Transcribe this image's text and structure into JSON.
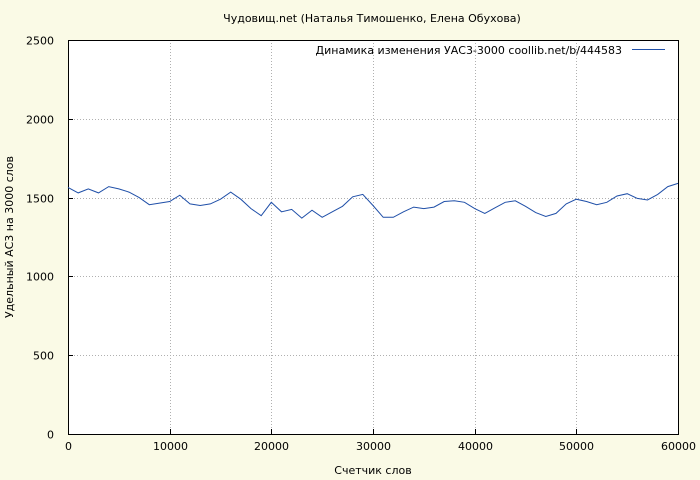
{
  "chart_data": {
    "type": "line",
    "title": "Чудовищ.net (Наталья Тимошенко, Елена Обухова)",
    "xlabel": "Счетчик слов",
    "ylabel": "Удельный АС3 на 3000 слов",
    "xlim": [
      0,
      60000
    ],
    "ylim": [
      0,
      2500
    ],
    "x_ticks": [
      0,
      10000,
      20000,
      30000,
      40000,
      50000,
      60000
    ],
    "y_ticks": [
      0,
      500,
      1000,
      1500,
      2000,
      2500
    ],
    "grid": true,
    "legend_position": "top-right",
    "colors": {
      "background": "#fafae6",
      "plot": "#ffffff",
      "line": "#1f4fa8",
      "grid": "#b0b0b0"
    },
    "series": [
      {
        "name": "Динамика изменения УАС3-3000  coollib.net/b/444583",
        "x": [
          0,
          1000,
          2000,
          3000,
          4000,
          5000,
          6000,
          7000,
          8000,
          9000,
          10000,
          11000,
          12000,
          13000,
          14000,
          15000,
          16000,
          17000,
          18000,
          19000,
          20000,
          21000,
          22000,
          23000,
          24000,
          25000,
          26000,
          27000,
          28000,
          29000,
          30000,
          31000,
          32000,
          33000,
          34000,
          35000,
          36000,
          37000,
          38000,
          39000,
          40000,
          41000,
          42000,
          43000,
          44000,
          45000,
          46000,
          47000,
          48000,
          49000,
          50000,
          51000,
          52000,
          53000,
          54000,
          55000,
          56000,
          57000,
          58000,
          59000,
          60000
        ],
        "y": [
          1565,
          1530,
          1555,
          1530,
          1570,
          1555,
          1535,
          1500,
          1455,
          1465,
          1475,
          1515,
          1460,
          1450,
          1460,
          1490,
          1535,
          1490,
          1430,
          1385,
          1470,
          1410,
          1425,
          1370,
          1420,
          1375,
          1410,
          1445,
          1505,
          1520,
          1450,
          1375,
          1375,
          1410,
          1440,
          1430,
          1440,
          1475,
          1480,
          1470,
          1430,
          1400,
          1435,
          1470,
          1480,
          1445,
          1405,
          1380,
          1400,
          1460,
          1490,
          1475,
          1455,
          1470,
          1510,
          1525,
          1495,
          1485,
          1520,
          1570,
          1590
        ]
      }
    ]
  }
}
